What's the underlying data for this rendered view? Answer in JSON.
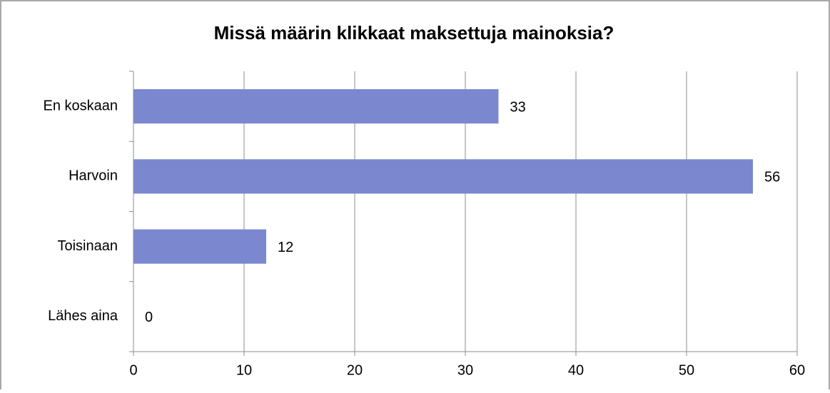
{
  "chart_data": {
    "type": "bar",
    "orientation": "horizontal",
    "title": "Missä määrin klikkaat maksettuja mainoksia?",
    "categories": [
      "En koskaan",
      "Harvoin",
      "Toisinaan",
      "Lähes aina"
    ],
    "values": [
      33,
      56,
      12,
      0
    ],
    "color": "#7b88cf",
    "xlim": [
      0,
      60
    ],
    "xticks": [
      0,
      10,
      20,
      30,
      40,
      50,
      60
    ],
    "grid": true
  }
}
